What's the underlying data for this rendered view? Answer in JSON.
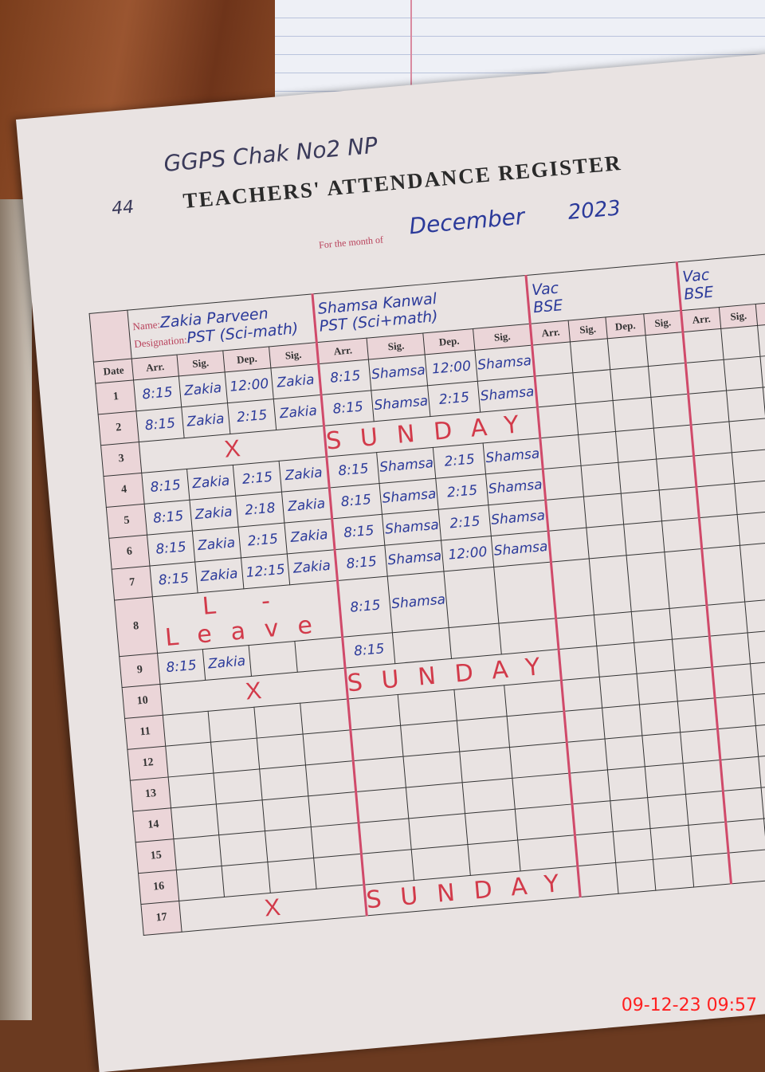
{
  "header": {
    "school": "GGPS Chak No2 NP",
    "page_no": "44",
    "title": "TEACHERS' ATTENDANCE REGISTER",
    "month_label": "For the month of",
    "month": "December",
    "year": "2023"
  },
  "labels": {
    "name": "Name:",
    "designation": "Designation:",
    "date": "Date",
    "arr": "Arr.",
    "sig": "Sig.",
    "dep": "Dep."
  },
  "teachers": [
    {
      "name": "Zakia Parveen",
      "designation": "PST (Sci-math)"
    },
    {
      "name": "Shamsa Kanwal",
      "designation": "PST (Sci+math)"
    },
    {
      "name": "Vac",
      "designation": "BSE"
    },
    {
      "name": "Vac",
      "designation": "BSE"
    }
  ],
  "rows": [
    {
      "date": "1",
      "t1": [
        "8:15",
        "Zakia",
        "12:00",
        "Zakia"
      ],
      "t2": [
        "8:15",
        "Shamsa",
        "12:00",
        "Shamsa"
      ]
    },
    {
      "date": "2",
      "t1": [
        "8:15",
        "Zakia",
        "2:15",
        "Zakia"
      ],
      "t2": [
        "8:15",
        "Shamsa",
        "2:15",
        "Shamsa"
      ]
    },
    {
      "date": "3",
      "t1_mark": "X",
      "t2_mark": "SUNDAY"
    },
    {
      "date": "4",
      "t1": [
        "8:15",
        "Zakia",
        "2:15",
        "Zakia"
      ],
      "t2": [
        "8:15",
        "Shamsa",
        "2:15",
        "Shamsa"
      ]
    },
    {
      "date": "5",
      "t1": [
        "8:15",
        "Zakia",
        "2:18",
        "Zakia"
      ],
      "t2": [
        "8:15",
        "Shamsa",
        "2:15",
        "Shamsa"
      ]
    },
    {
      "date": "6",
      "t1": [
        "8:15",
        "Zakia",
        "2:15",
        "Zakia"
      ],
      "t2": [
        "8:15",
        "Shamsa",
        "2:15",
        "Shamsa"
      ]
    },
    {
      "date": "7",
      "t1": [
        "8:15",
        "Zakia",
        "12:15",
        "Zakia"
      ],
      "t2": [
        "8:15",
        "Shamsa",
        "12:00",
        "Shamsa"
      ]
    },
    {
      "date": "8",
      "t1_mark": "L - Leave",
      "t2": [
        "8:15",
        "Shamsa",
        "",
        ""
      ]
    },
    {
      "date": "9",
      "t1": [
        "8:15",
        "Zakia",
        "",
        ""
      ],
      "t2": [
        "8:15",
        "",
        "",
        ""
      ]
    },
    {
      "date": "10",
      "t1_mark": "X",
      "t2_mark": "SUNDAY"
    },
    {
      "date": "11"
    },
    {
      "date": "12"
    },
    {
      "date": "13"
    },
    {
      "date": "14"
    },
    {
      "date": "15"
    },
    {
      "date": "16"
    },
    {
      "date": "17",
      "t1_mark": "X",
      "t2_mark": "SUNDAY"
    }
  ],
  "timestamp": "09-12-23  09:57",
  "colors": {
    "ink_blue": "#2b3a9a",
    "ink_red": "#d23a4a",
    "rule_pink": "#d04a6a",
    "stamp": "#ff2020"
  }
}
